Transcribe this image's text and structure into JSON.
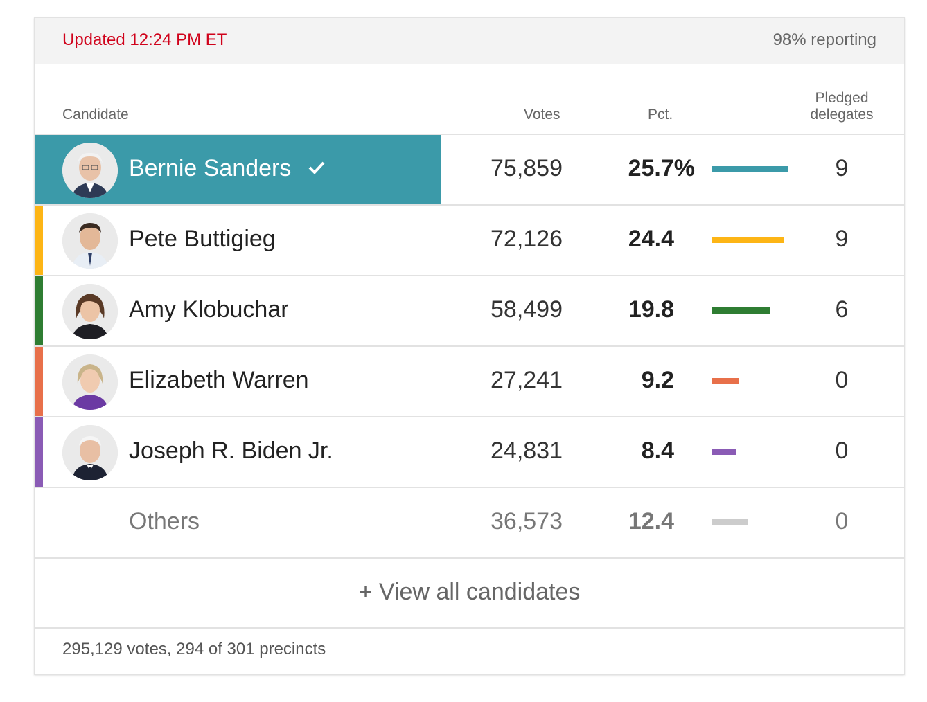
{
  "header": {
    "updated": "Updated 12:24 PM ET",
    "reporting": "98% reporting"
  },
  "columns": {
    "candidate": "Candidate",
    "votes": "Votes",
    "pct": "Pct.",
    "delegates_line1": "Pledged",
    "delegates_line2": "delegates"
  },
  "rows": [
    {
      "name": "Bernie Sanders",
      "votes": "75,859",
      "pct": "25.7%",
      "pct_value": 25.7,
      "delegates": "9",
      "color": "#3b9aa9",
      "winner": true
    },
    {
      "name": "Pete Buttigieg",
      "votes": "72,126",
      "pct": "24.4",
      "pct_value": 24.4,
      "delegates": "9",
      "color": "#fdb515",
      "winner": false
    },
    {
      "name": "Amy Klobuchar",
      "votes": "58,499",
      "pct": "19.8",
      "pct_value": 19.8,
      "delegates": "6",
      "color": "#2e7d32",
      "winner": false
    },
    {
      "name": "Elizabeth Warren",
      "votes": "27,241",
      "pct": "9.2",
      "pct_value": 9.2,
      "delegates": "0",
      "color": "#e8704a",
      "winner": false
    },
    {
      "name": "Joseph R. Biden Jr.",
      "votes": "24,831",
      "pct": "8.4",
      "pct_value": 8.4,
      "delegates": "0",
      "color": "#8a5bb5",
      "winner": false
    },
    {
      "name": "Others",
      "votes": "36,573",
      "pct": "12.4",
      "pct_value": 12.4,
      "delegates": "0",
      "color": "#cccccc",
      "winner": false
    }
  ],
  "view_all": "+ View all candidates",
  "footer": "295,129 votes, 294 of 301 precincts"
}
